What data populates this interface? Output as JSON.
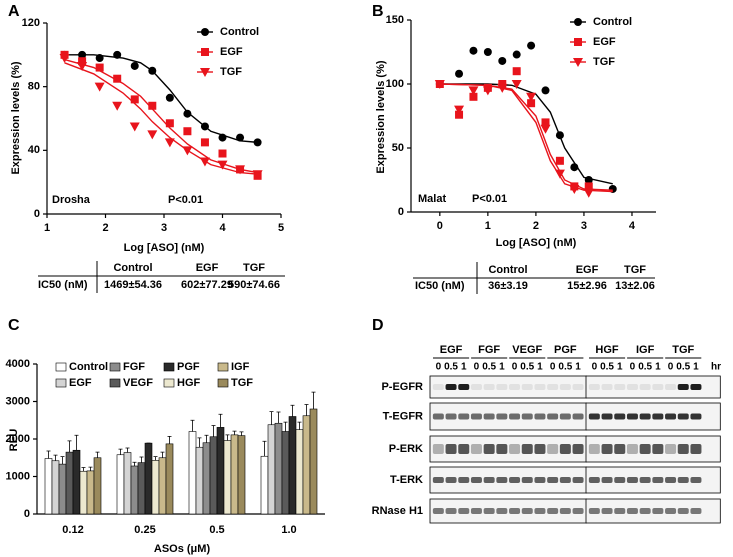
{
  "panels": [
    "A",
    "B",
    "C",
    "D"
  ],
  "chart_data": [
    {
      "type": "scatter",
      "x_label": "Log [ASO] (nM)",
      "y_label": "Expression levels (%)",
      "xlim": [
        1,
        5
      ],
      "xticks": [
        1,
        2,
        3,
        4,
        5
      ],
      "ylim": [
        0,
        120
      ],
      "yticks": [
        0,
        40,
        80,
        120
      ],
      "annotations": [
        {
          "text": "Drosha",
          "color": "#000000"
        },
        {
          "text": "P<0.01",
          "color": "#e8141c"
        }
      ],
      "series": [
        {
          "name": "Control",
          "color": "#000000",
          "marker": "circle",
          "x": [
            1.3,
            1.6,
            1.9,
            2.2,
            2.5,
            2.8,
            3.1,
            3.4,
            3.7,
            4.0,
            4.3,
            4.6
          ],
          "values": [
            100,
            100,
            98,
            100,
            93,
            90,
            73,
            63,
            55,
            48,
            48,
            45
          ],
          "fit_x": [
            1.3,
            1.8,
            2.3,
            2.6,
            2.8,
            3.1,
            3.4,
            3.8,
            4.3,
            4.6
          ],
          "fit_values": [
            100,
            100,
            98,
            95,
            90,
            78,
            64,
            52,
            46,
            45
          ]
        },
        {
          "name": "EGF",
          "color": "#e8141c",
          "marker": "square",
          "x": [
            1.3,
            1.6,
            1.9,
            2.2,
            2.5,
            2.8,
            3.1,
            3.4,
            3.7,
            4.0,
            4.3,
            4.6
          ],
          "values": [
            100,
            96,
            92,
            85,
            72,
            68,
            57,
            52,
            45,
            38,
            28,
            24
          ],
          "fit_x": [
            1.3,
            1.8,
            2.3,
            2.6,
            2.8,
            3.1,
            3.4,
            3.8,
            4.3,
            4.6
          ],
          "fit_values": [
            97,
            92,
            82,
            74,
            66,
            54,
            44,
            34,
            28,
            26
          ]
        },
        {
          "name": "TGF",
          "color": "#e8141c",
          "marker": "triangle",
          "x": [
            1.3,
            1.6,
            1.9,
            2.2,
            2.5,
            2.8,
            3.1,
            3.4,
            3.7,
            4.0,
            4.3,
            4.6
          ],
          "values": [
            98,
            93,
            80,
            68,
            55,
            50,
            45,
            40,
            33,
            31,
            28,
            25
          ],
          "fit_x": [
            1.3,
            1.8,
            2.3,
            2.6,
            2.8,
            3.1,
            3.4,
            3.8,
            4.3,
            4.6
          ],
          "fit_values": [
            95,
            88,
            76,
            66,
            58,
            48,
            40,
            31,
            26,
            25
          ]
        }
      ]
    },
    {
      "type": "scatter",
      "x_label": "Log [ASO] (nM)",
      "y_label": "Expression levels (%)",
      "xlim": [
        -0.6,
        4.5
      ],
      "xticks": [
        0,
        1,
        2,
        3,
        4
      ],
      "ylim": [
        0,
        150
      ],
      "yticks": [
        0,
        50,
        100,
        150
      ],
      "annotations": [
        {
          "text": "Malat",
          "color": "#000000"
        },
        {
          "text": "P<0.01",
          "color": "#e8141c"
        }
      ],
      "series": [
        {
          "name": "Control",
          "color": "#000000",
          "marker": "circle",
          "x": [
            0,
            0.4,
            0.7,
            1.0,
            1.3,
            1.6,
            1.9,
            2.2,
            2.5,
            2.8,
            3.1,
            3.6
          ],
          "values": [
            100,
            108,
            126,
            125,
            118,
            123,
            130,
            95,
            60,
            35,
            25,
            18
          ],
          "fit_x": [
            0,
            1.0,
            1.5,
            2.0,
            2.3,
            2.6,
            3.0,
            3.6
          ],
          "fit_values": [
            100,
            100,
            99,
            92,
            78,
            50,
            27,
            22
          ]
        },
        {
          "name": "EGF",
          "color": "#e8141c",
          "marker": "square",
          "x": [
            0,
            0.4,
            0.7,
            1.0,
            1.3,
            1.6,
            1.9,
            2.2,
            2.5,
            2.8,
            3.1,
            3.6
          ],
          "values": [
            100,
            76,
            90,
            97,
            100,
            110,
            85,
            70,
            40,
            20,
            20,
            null
          ],
          "fit_x": [
            0,
            1.0,
            1.5,
            2.0,
            2.3,
            2.6,
            3.0,
            3.6
          ],
          "fit_values": [
            100,
            99,
            96,
            75,
            45,
            25,
            18,
            17
          ]
        },
        {
          "name": "TGF",
          "color": "#e8141c",
          "marker": "triangle",
          "x": [
            0,
            0.4,
            0.7,
            1.0,
            1.3,
            1.6,
            1.9,
            2.2,
            2.5,
            2.8,
            3.1,
            3.6
          ],
          "values": [
            100,
            80,
            95,
            95,
            97,
            100,
            90,
            65,
            30,
            18,
            15,
            null
          ],
          "fit_x": [
            0,
            1.0,
            1.5,
            2.0,
            2.3,
            2.6,
            3.0,
            3.6
          ],
          "fit_values": [
            100,
            99,
            95,
            70,
            40,
            22,
            17,
            16
          ]
        }
      ]
    },
    {
      "type": "bar",
      "x_label": "ASOs (μM)",
      "y_label": "RFU",
      "categories": [
        "0.12",
        "0.25",
        "0.5",
        "1.0"
      ],
      "ylim": [
        0,
        4000
      ],
      "yticks": [
        0,
        1000,
        2000,
        3000,
        4000
      ],
      "series": [
        {
          "name": "Control",
          "color": "#ffffff",
          "values": [
            1480,
            1580,
            2200,
            1540
          ],
          "errors": [
            200,
            150,
            300,
            400
          ]
        },
        {
          "name": "EGF",
          "color": "#d4d4d4",
          "values": [
            1420,
            1640,
            1780,
            2380
          ],
          "errors": [
            150,
            120,
            250,
            350
          ]
        },
        {
          "name": "FGF",
          "color": "#8c8c8c",
          "values": [
            1330,
            1280,
            1900,
            2420
          ],
          "errors": [
            200,
            100,
            200,
            300
          ]
        },
        {
          "name": "VEGF",
          "color": "#5a5a5a",
          "values": [
            1650,
            1370,
            2060,
            2200
          ],
          "errors": [
            300,
            150,
            300,
            250
          ]
        },
        {
          "name": "PGF",
          "color": "#2a2a2a",
          "values": [
            1700,
            1890,
            2310,
            2600
          ],
          "errors": [
            400,
            0,
            350,
            300
          ]
        },
        {
          "name": "HGF",
          "color": "#ece8cf",
          "values": [
            1140,
            1430,
            1960,
            2250
          ],
          "errors": [
            100,
            100,
            150,
            200
          ]
        },
        {
          "name": "IGF",
          "color": "#c9b98b",
          "values": [
            1150,
            1500,
            2110,
            2620
          ],
          "errors": [
            100,
            150,
            100,
            300
          ]
        },
        {
          "name": "TGF",
          "color": "#9a8a5c",
          "values": [
            1500,
            1870,
            2090,
            2800
          ],
          "errors": [
            150,
            200,
            100,
            450
          ]
        }
      ]
    }
  ],
  "ic50_tables": [
    {
      "header": [
        "Control",
        "EGF",
        "TGF"
      ],
      "row_label": "IC50 (nM)",
      "values": [
        "1469±54.36",
        "602±77.29",
        "590±74.66"
      ]
    },
    {
      "header": [
        "Control",
        "EGF",
        "TGF"
      ],
      "row_label": "IC50 (nM)",
      "values": [
        "36±3.19",
        "15±2.96",
        "13±2.06"
      ]
    }
  ],
  "blot": {
    "groups": [
      "EGF",
      "FGF",
      "VEGF",
      "PGF",
      "HGF",
      "IGF",
      "TGF"
    ],
    "timepoints": [
      "0",
      "0.5",
      "1"
    ],
    "unit": "hr",
    "rows": [
      "P-EGFR",
      "T-EGFR",
      "P-ERK",
      "T-ERK",
      "RNase H1"
    ]
  }
}
